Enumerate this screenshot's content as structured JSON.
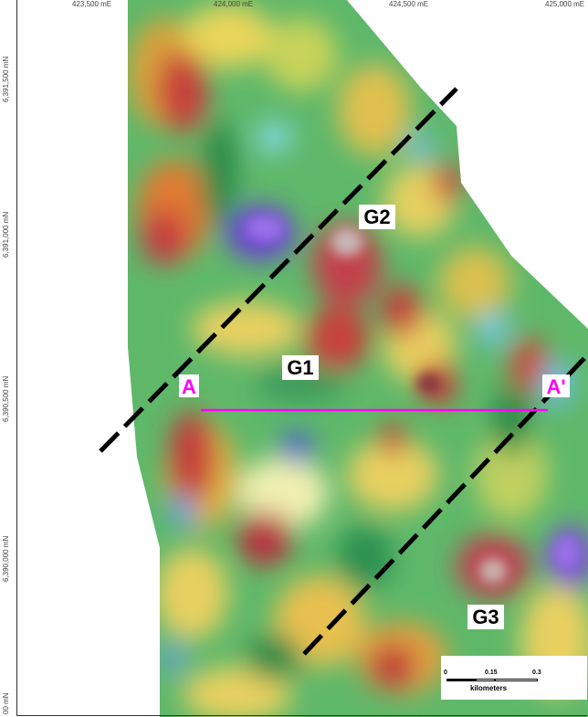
{
  "map": {
    "top_coordinates": [
      "423,500 mE",
      "424,000 mE",
      "424,500 mE",
      "425,000 mE"
    ],
    "left_coordinates": [
      "6,391,500 mN",
      "6,391,000 mN",
      "6,390,500 mN",
      "6,390,000 mN",
      "00 mN"
    ],
    "labels": {
      "g1": "G1",
      "g2": "G2",
      "g3": "G3",
      "a": "A",
      "a_prime": "A'"
    },
    "section_line_color": "#ff00ff",
    "section_label_color": "#ff00ff"
  },
  "scale_bar": {
    "ticks": [
      "0",
      "0.15",
      "0.3"
    ],
    "unit": "kilometers"
  }
}
